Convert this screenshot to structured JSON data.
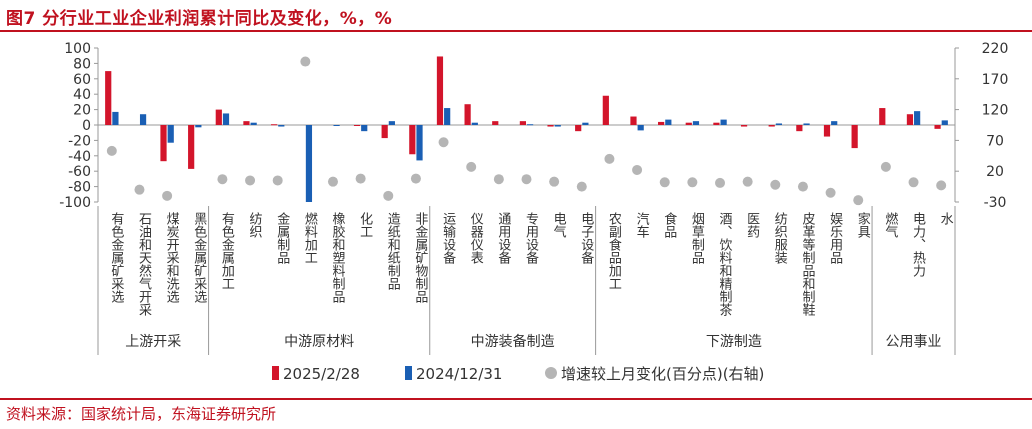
{
  "title": "图7  分行业工业企业利润累计同比及变化，%，%",
  "source": "资料来源：国家统计局，东海证券研究所",
  "colors": {
    "series1": "#d3152b",
    "series2": "#1a5fb4",
    "series3": "#b5b5b5",
    "accent": "#c0111f"
  },
  "chart_data": {
    "type": "bar",
    "categories": [
      "有色金属矿采选",
      "石油和天然气开采",
      "煤炭开采和洗选",
      "黑色金属矿采选",
      "有色金属加工",
      "纺织",
      "金属制品",
      "燃料加工",
      "橡胶和塑料制品",
      "化工",
      "造纸和纸制品",
      "非金属矿物制品",
      "运输设备",
      "仪器仪表",
      "通用设备",
      "专用设备",
      "电气",
      "电子设备",
      "农副食品加工",
      "汽车",
      "食品",
      "烟草制品",
      "酒、饮料和精制茶",
      "医药",
      "纺织服装",
      "皮革等制品和制鞋",
      "娱乐用品",
      "家具",
      "燃气",
      "电力、热力",
      "水"
    ],
    "groups": [
      {
        "name": "上游开采",
        "start": 0,
        "end": 3
      },
      {
        "name": "中游原材料",
        "start": 4,
        "end": 11
      },
      {
        "name": "中游装备制造",
        "start": 12,
        "end": 17
      },
      {
        "name": "下游制造",
        "start": 18,
        "end": 27
      },
      {
        "name": "公用事业",
        "start": 28,
        "end": 30
      }
    ],
    "series": [
      {
        "name": "2025/2/28",
        "axis": "left",
        "kind": "bar",
        "values": [
          70,
          0,
          -47,
          -57,
          20,
          5,
          1,
          0,
          0,
          -1,
          -17,
          -38,
          89,
          27,
          5,
          5,
          -2,
          -8,
          38,
          11,
          4,
          3,
          3,
          -2,
          -2,
          -8,
          -15,
          -30,
          22,
          14,
          -5
        ]
      },
      {
        "name": "2024/12/31",
        "axis": "left",
        "kind": "bar",
        "values": [
          17,
          14,
          -23,
          -3,
          15,
          3,
          -2,
          -100,
          -1,
          -8,
          5,
          -46,
          22,
          3,
          0,
          1,
          -2,
          3,
          0,
          -7,
          7,
          5,
          7,
          0,
          2,
          2,
          5,
          0,
          0,
          18,
          6
        ]
      },
      {
        "name": "增速较上月变化(百分点)(右轴)",
        "axis": "right",
        "kind": "scatter",
        "values": [
          53,
          -10,
          -20,
          null,
          7,
          5,
          5,
          198,
          3,
          8,
          -20,
          8,
          67,
          27,
          7,
          7,
          3,
          -5,
          40,
          22,
          2,
          2,
          1,
          3,
          -2,
          -5,
          -15,
          -27,
          27,
          2,
          -3
        ]
      }
    ],
    "y_left": {
      "ticks": [
        100,
        80,
        60,
        40,
        20,
        0,
        -20,
        -40,
        -60,
        -80,
        -100
      ],
      "range": [
        -100,
        100
      ]
    },
    "y_right": {
      "ticks": [
        220,
        170,
        120,
        70,
        20,
        -30
      ],
      "range": [
        -30,
        220
      ]
    },
    "legend": "bottom"
  }
}
